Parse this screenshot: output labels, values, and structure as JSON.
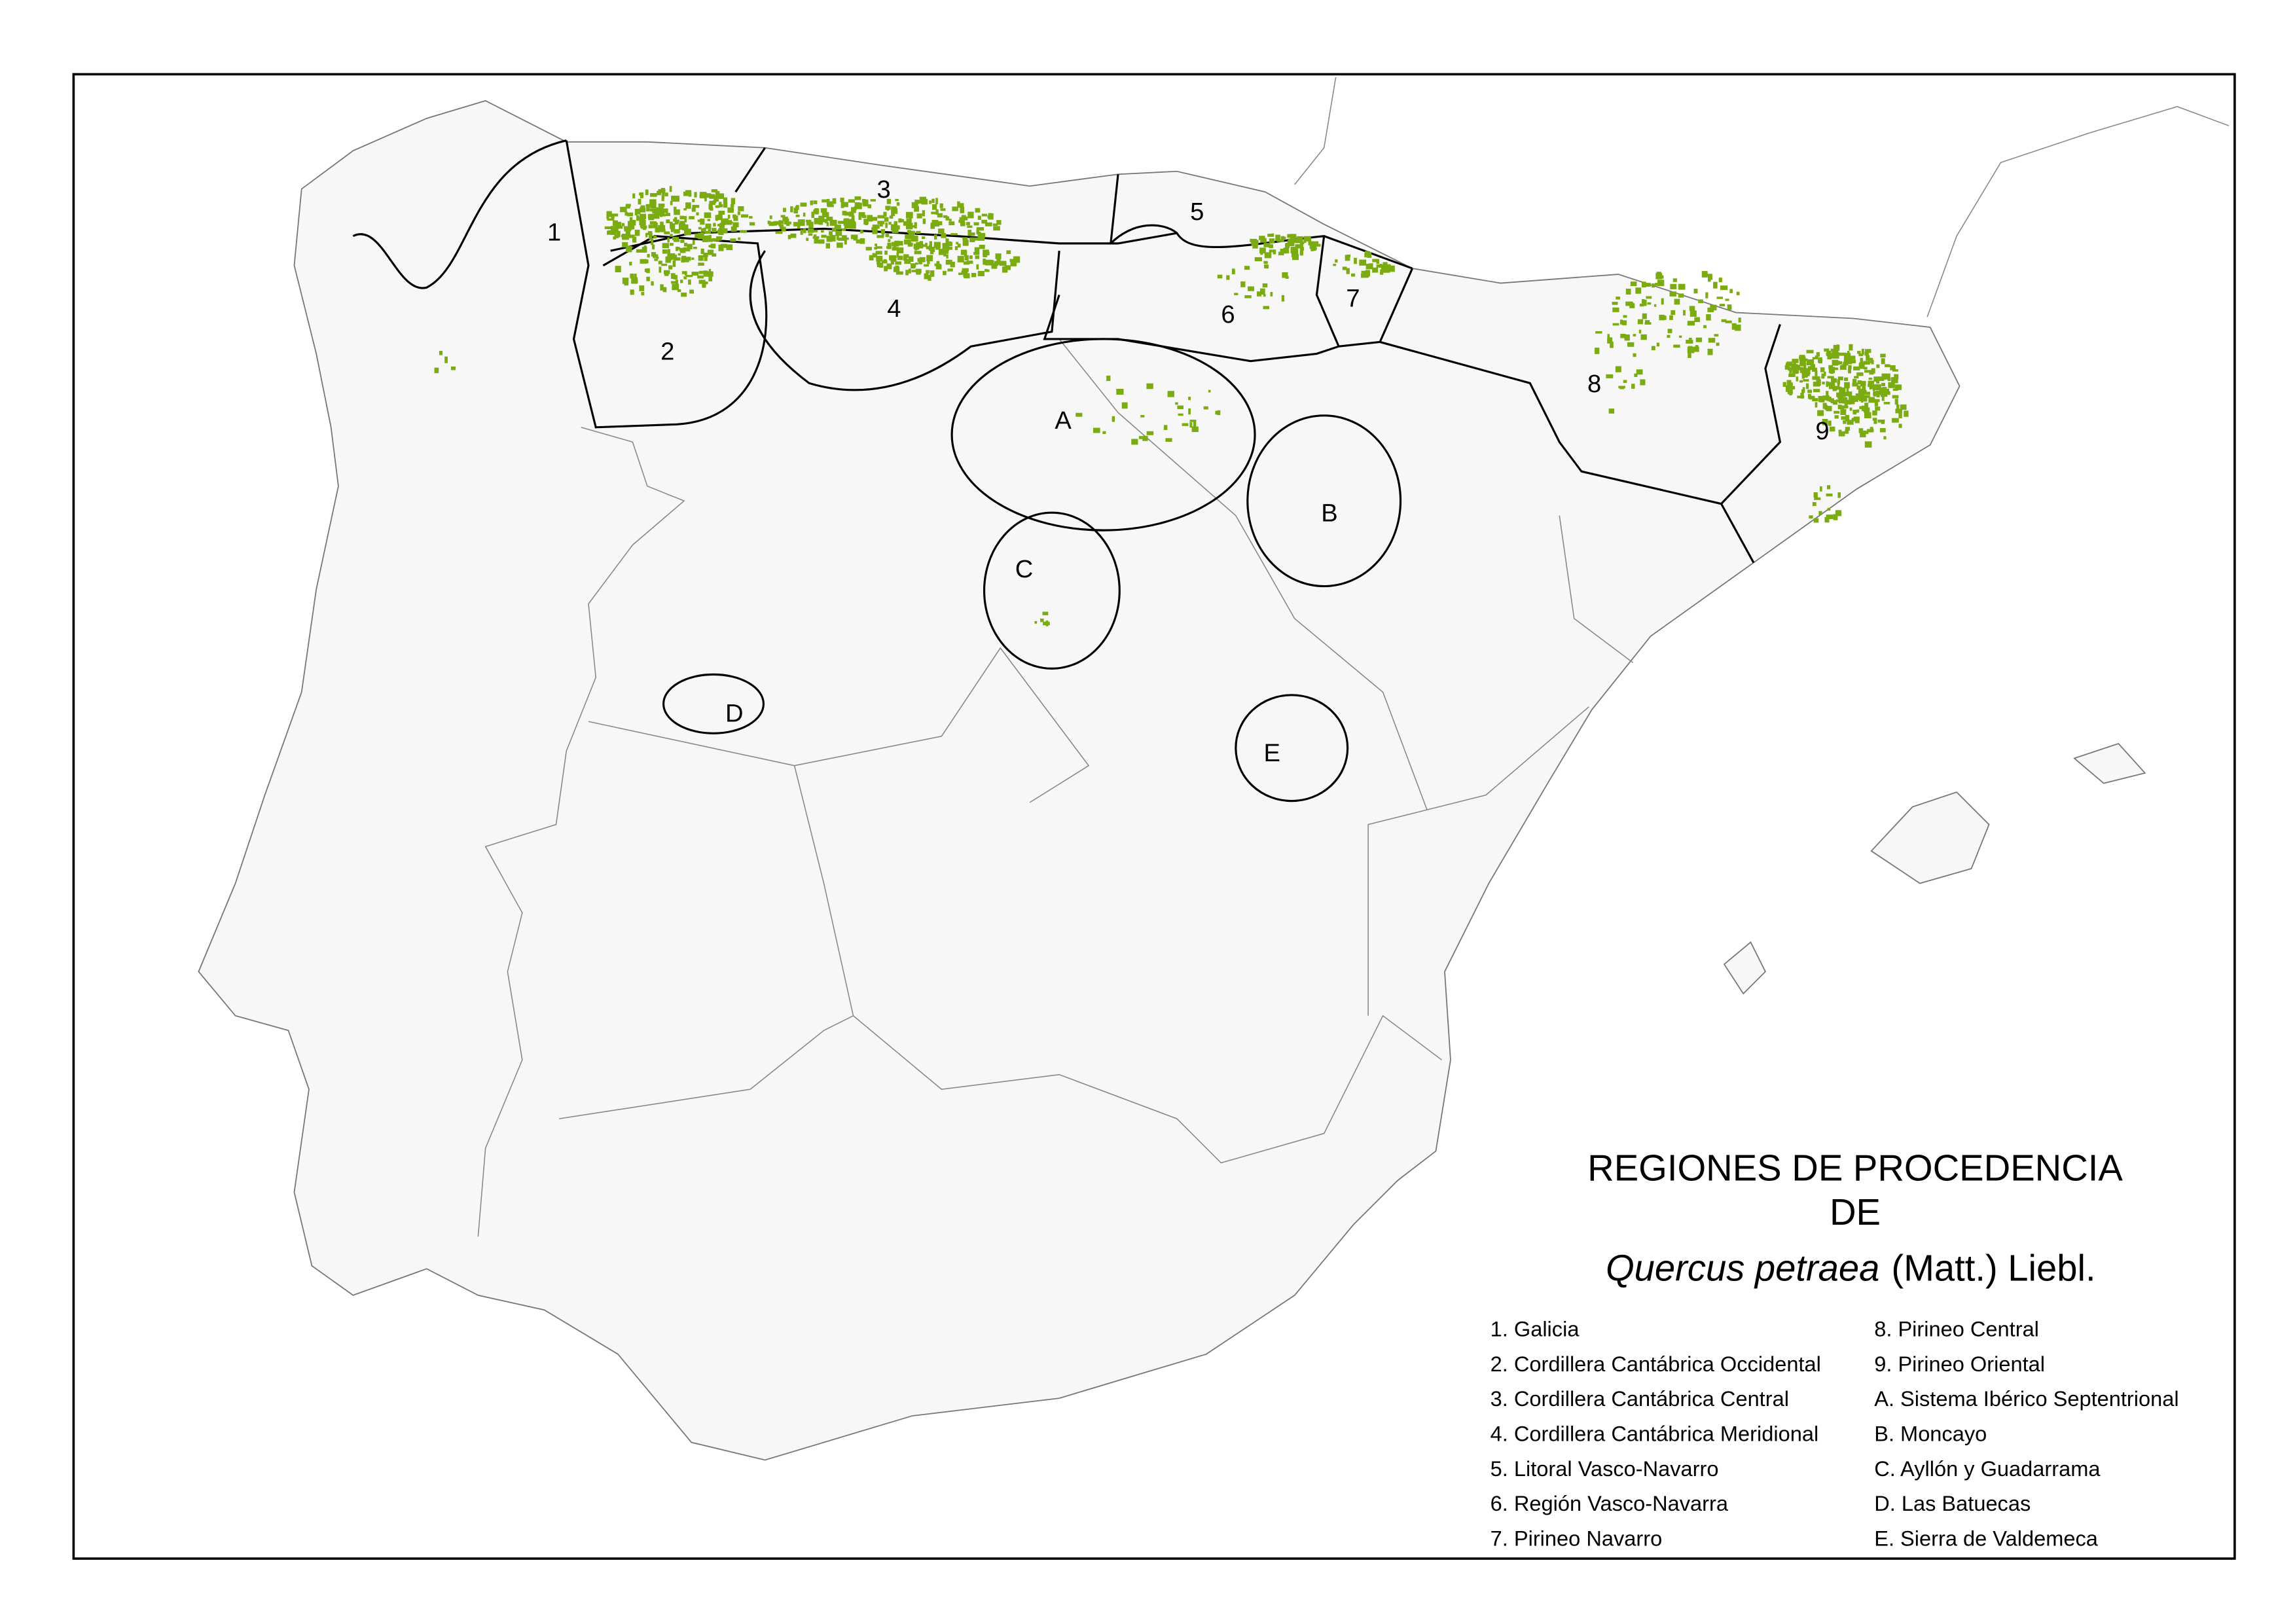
{
  "title": {
    "line1": "REGIONES DE PROCEDENCIA",
    "line2": "DE",
    "species_italic": "Quercus petraea",
    "species_author": "(Matt.) Liebl."
  },
  "region_labels": [
    "1",
    "2",
    "3",
    "4",
    "5",
    "6",
    "7",
    "8",
    "9",
    "A",
    "B",
    "C",
    "D",
    "E"
  ],
  "legend": {
    "column1": [
      "1. Galicia",
      "2. Cordillera Cantábrica Occidental",
      "3. Cordillera Cantábrica Central",
      "4. Cordillera Cantábrica Meridional",
      "5. Litoral Vasco-Navarro",
      "6. Región Vasco-Navarra",
      "7. Pirineo Navarro"
    ],
    "column2": [
      "8. Pirineo Central",
      "9. Pirineo Oriental",
      "A. Sistema Ibérico Septentrional",
      "B. Moncayo",
      "C. Ayllón y Guadarrama",
      "D. Las Batuecas",
      "E. Sierra de Valdemeca"
    ]
  },
  "colors": {
    "distribution": "#7aab10",
    "land": "#f7f7f7",
    "region_border": "#000000",
    "admin_border": "#888888"
  }
}
